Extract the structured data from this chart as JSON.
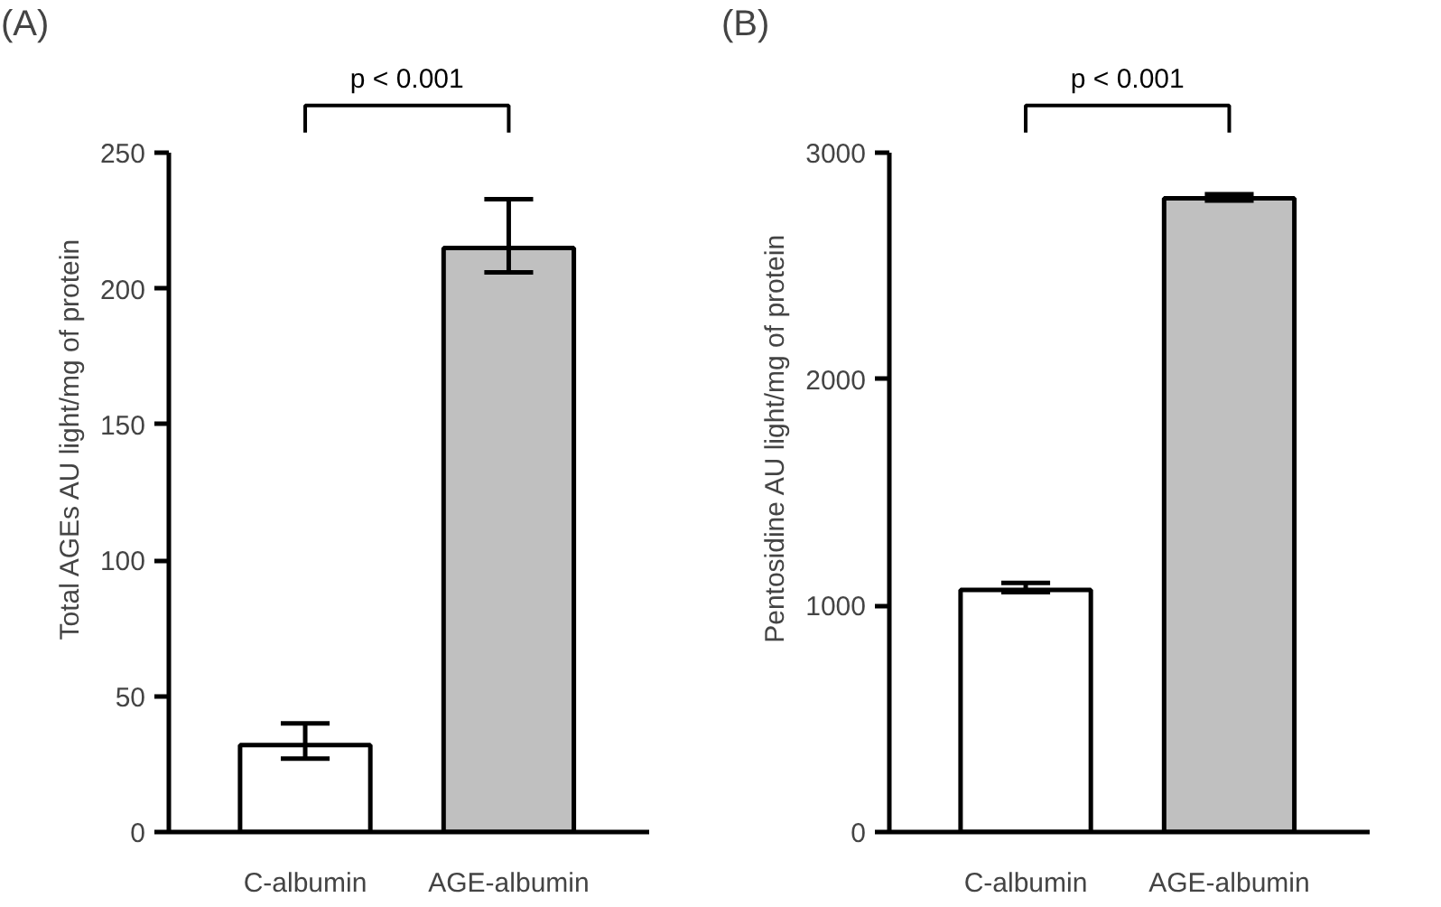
{
  "chart_data": [
    {
      "type": "bar",
      "title": "(A)",
      "ylabel": "Total AGEs AU light/mg of protein",
      "categories": [
        "C-albumin",
        "AGE-albumin"
      ],
      "values": [
        32,
        215
      ],
      "colors": [
        "#ffffff",
        "#c0c0c0"
      ],
      "errors": [
        [
          27,
          40
        ],
        [
          206,
          233
        ]
      ],
      "ylim": [
        0,
        250
      ],
      "yticks": [
        0,
        50,
        100,
        150,
        200,
        250
      ],
      "grid": false,
      "annotations": [
        "p < 0.001"
      ]
    },
    {
      "type": "bar",
      "title": "(B)",
      "ylabel": "Pentosidine AU light/mg of protein",
      "categories": [
        "C-albumin",
        "AGE-albumin"
      ],
      "values": [
        1070,
        2800
      ],
      "colors": [
        "#ffffff",
        "#c0c0c0"
      ],
      "errors": [
        [
          1060,
          1100
        ],
        [
          2790,
          2818
        ]
      ],
      "ylim": [
        0,
        3000
      ],
      "yticks": [
        0,
        1000,
        2000,
        3000
      ],
      "grid": false,
      "annotations": [
        "p < 0.001"
      ]
    }
  ]
}
